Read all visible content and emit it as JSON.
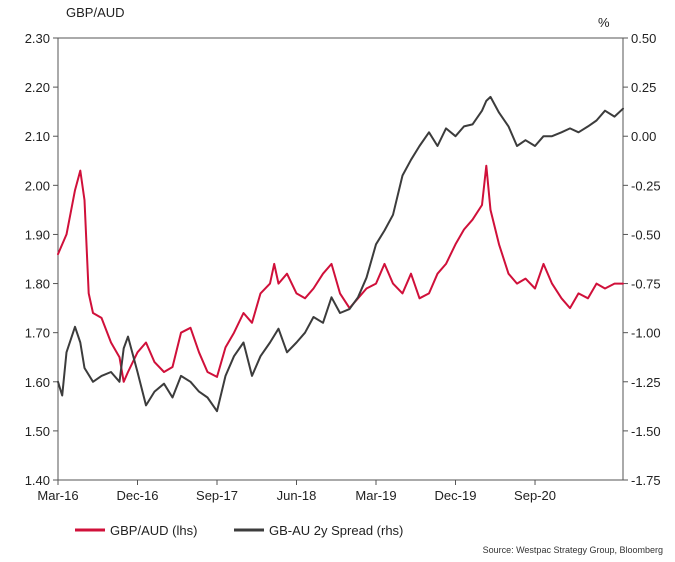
{
  "chart_data": {
    "type": "line",
    "left_axis": {
      "title": "GBP/AUD",
      "min": 1.4,
      "max": 2.3,
      "ticks": [
        "1.40",
        "1.50",
        "1.60",
        "1.70",
        "1.80",
        "1.90",
        "2.00",
        "2.10",
        "2.20",
        "2.30"
      ]
    },
    "right_axis": {
      "title": "%",
      "min": -1.75,
      "max": 0.5,
      "ticks": [
        "-1.75",
        "-1.50",
        "-1.25",
        "-1.00",
        "-0.75",
        "-0.50",
        "-0.25",
        "0.00",
        "0.25",
        "0.50"
      ]
    },
    "x_axis": {
      "min": 2016.17,
      "max": 2021.5,
      "ticks": [
        {
          "label": "Mar-16",
          "value": 2016.17
        },
        {
          "label": "Dec-16",
          "value": 2016.92
        },
        {
          "label": "Sep-17",
          "value": 2017.67
        },
        {
          "label": "Jun-18",
          "value": 2018.42
        },
        {
          "label": "Mar-19",
          "value": 2019.17
        },
        {
          "label": "Dec-19",
          "value": 2019.92
        },
        {
          "label": "Sep-20",
          "value": 2020.67
        }
      ]
    },
    "series": [
      {
        "name": "GBP/AUD (lhs)",
        "axis": "left",
        "color": "#d0103a",
        "points": [
          [
            2016.17,
            1.86
          ],
          [
            2016.25,
            1.9
          ],
          [
            2016.33,
            1.99
          ],
          [
            2016.38,
            2.03
          ],
          [
            2016.42,
            1.97
          ],
          [
            2016.46,
            1.78
          ],
          [
            2016.5,
            1.74
          ],
          [
            2016.58,
            1.73
          ],
          [
            2016.67,
            1.68
          ],
          [
            2016.75,
            1.65
          ],
          [
            2016.79,
            1.6
          ],
          [
            2016.83,
            1.62
          ],
          [
            2016.92,
            1.66
          ],
          [
            2017.0,
            1.68
          ],
          [
            2017.08,
            1.64
          ],
          [
            2017.17,
            1.62
          ],
          [
            2017.25,
            1.63
          ],
          [
            2017.33,
            1.7
          ],
          [
            2017.42,
            1.71
          ],
          [
            2017.5,
            1.66
          ],
          [
            2017.58,
            1.62
          ],
          [
            2017.67,
            1.61
          ],
          [
            2017.75,
            1.67
          ],
          [
            2017.83,
            1.7
          ],
          [
            2017.92,
            1.74
          ],
          [
            2018.0,
            1.72
          ],
          [
            2018.08,
            1.78
          ],
          [
            2018.17,
            1.8
          ],
          [
            2018.21,
            1.84
          ],
          [
            2018.25,
            1.8
          ],
          [
            2018.33,
            1.82
          ],
          [
            2018.42,
            1.78
          ],
          [
            2018.5,
            1.77
          ],
          [
            2018.58,
            1.79
          ],
          [
            2018.67,
            1.82
          ],
          [
            2018.75,
            1.84
          ],
          [
            2018.83,
            1.78
          ],
          [
            2018.92,
            1.75
          ],
          [
            2019.0,
            1.77
          ],
          [
            2019.08,
            1.79
          ],
          [
            2019.17,
            1.8
          ],
          [
            2019.25,
            1.84
          ],
          [
            2019.33,
            1.8
          ],
          [
            2019.42,
            1.78
          ],
          [
            2019.5,
            1.82
          ],
          [
            2019.58,
            1.77
          ],
          [
            2019.67,
            1.78
          ],
          [
            2019.75,
            1.82
          ],
          [
            2019.83,
            1.84
          ],
          [
            2019.92,
            1.88
          ],
          [
            2020.0,
            1.91
          ],
          [
            2020.08,
            1.93
          ],
          [
            2020.17,
            1.96
          ],
          [
            2020.21,
            2.04
          ],
          [
            2020.25,
            1.95
          ],
          [
            2020.33,
            1.88
          ],
          [
            2020.42,
            1.82
          ],
          [
            2020.5,
            1.8
          ],
          [
            2020.58,
            1.81
          ],
          [
            2020.67,
            1.79
          ],
          [
            2020.75,
            1.84
          ],
          [
            2020.83,
            1.8
          ],
          [
            2020.92,
            1.77
          ],
          [
            2021.0,
            1.75
          ],
          [
            2021.08,
            1.78
          ],
          [
            2021.17,
            1.77
          ],
          [
            2021.25,
            1.8
          ],
          [
            2021.33,
            1.79
          ],
          [
            2021.42,
            1.8
          ],
          [
            2021.5,
            1.8
          ]
        ]
      },
      {
        "name": "GB-AU 2y Spread (rhs)",
        "axis": "right",
        "color": "#3c3c3c",
        "points": [
          [
            2016.17,
            -1.25
          ],
          [
            2016.21,
            -1.32
          ],
          [
            2016.25,
            -1.1
          ],
          [
            2016.33,
            -0.97
          ],
          [
            2016.38,
            -1.05
          ],
          [
            2016.42,
            -1.18
          ],
          [
            2016.5,
            -1.25
          ],
          [
            2016.58,
            -1.22
          ],
          [
            2016.67,
            -1.2
          ],
          [
            2016.75,
            -1.25
          ],
          [
            2016.79,
            -1.08
          ],
          [
            2016.83,
            -1.02
          ],
          [
            2016.92,
            -1.2
          ],
          [
            2017.0,
            -1.37
          ],
          [
            2017.08,
            -1.3
          ],
          [
            2017.17,
            -1.26
          ],
          [
            2017.25,
            -1.33
          ],
          [
            2017.33,
            -1.22
          ],
          [
            2017.42,
            -1.25
          ],
          [
            2017.5,
            -1.3
          ],
          [
            2017.58,
            -1.33
          ],
          [
            2017.67,
            -1.4
          ],
          [
            2017.75,
            -1.22
          ],
          [
            2017.83,
            -1.12
          ],
          [
            2017.92,
            -1.05
          ],
          [
            2018.0,
            -1.22
          ],
          [
            2018.08,
            -1.12
          ],
          [
            2018.17,
            -1.05
          ],
          [
            2018.25,
            -0.98
          ],
          [
            2018.33,
            -1.1
          ],
          [
            2018.42,
            -1.05
          ],
          [
            2018.5,
            -1.0
          ],
          [
            2018.58,
            -0.92
          ],
          [
            2018.67,
            -0.95
          ],
          [
            2018.75,
            -0.82
          ],
          [
            2018.83,
            -0.9
          ],
          [
            2018.92,
            -0.88
          ],
          [
            2019.0,
            -0.82
          ],
          [
            2019.08,
            -0.72
          ],
          [
            2019.17,
            -0.55
          ],
          [
            2019.25,
            -0.48
          ],
          [
            2019.33,
            -0.4
          ],
          [
            2019.42,
            -0.2
          ],
          [
            2019.5,
            -0.12
          ],
          [
            2019.58,
            -0.05
          ],
          [
            2019.67,
            0.02
          ],
          [
            2019.75,
            -0.05
          ],
          [
            2019.83,
            0.04
          ],
          [
            2019.92,
            0.0
          ],
          [
            2020.0,
            0.05
          ],
          [
            2020.08,
            0.06
          ],
          [
            2020.17,
            0.13
          ],
          [
            2020.21,
            0.18
          ],
          [
            2020.25,
            0.2
          ],
          [
            2020.33,
            0.12
          ],
          [
            2020.42,
            0.05
          ],
          [
            2020.5,
            -0.05
          ],
          [
            2020.58,
            -0.02
          ],
          [
            2020.67,
            -0.05
          ],
          [
            2020.75,
            0.0
          ],
          [
            2020.83,
            0.0
          ],
          [
            2020.92,
            0.02
          ],
          [
            2021.0,
            0.04
          ],
          [
            2021.08,
            0.02
          ],
          [
            2021.17,
            0.05
          ],
          [
            2021.25,
            0.08
          ],
          [
            2021.33,
            0.13
          ],
          [
            2021.42,
            0.1
          ],
          [
            2021.5,
            0.14
          ]
        ]
      }
    ],
    "legend": [
      {
        "label": "GBP/AUD (lhs)",
        "color": "#d0103a"
      },
      {
        "label": "GB-AU 2y Spread (rhs)",
        "color": "#3c3c3c"
      }
    ],
    "source": "Source: Westpac Strategy Group, Bloomberg"
  }
}
